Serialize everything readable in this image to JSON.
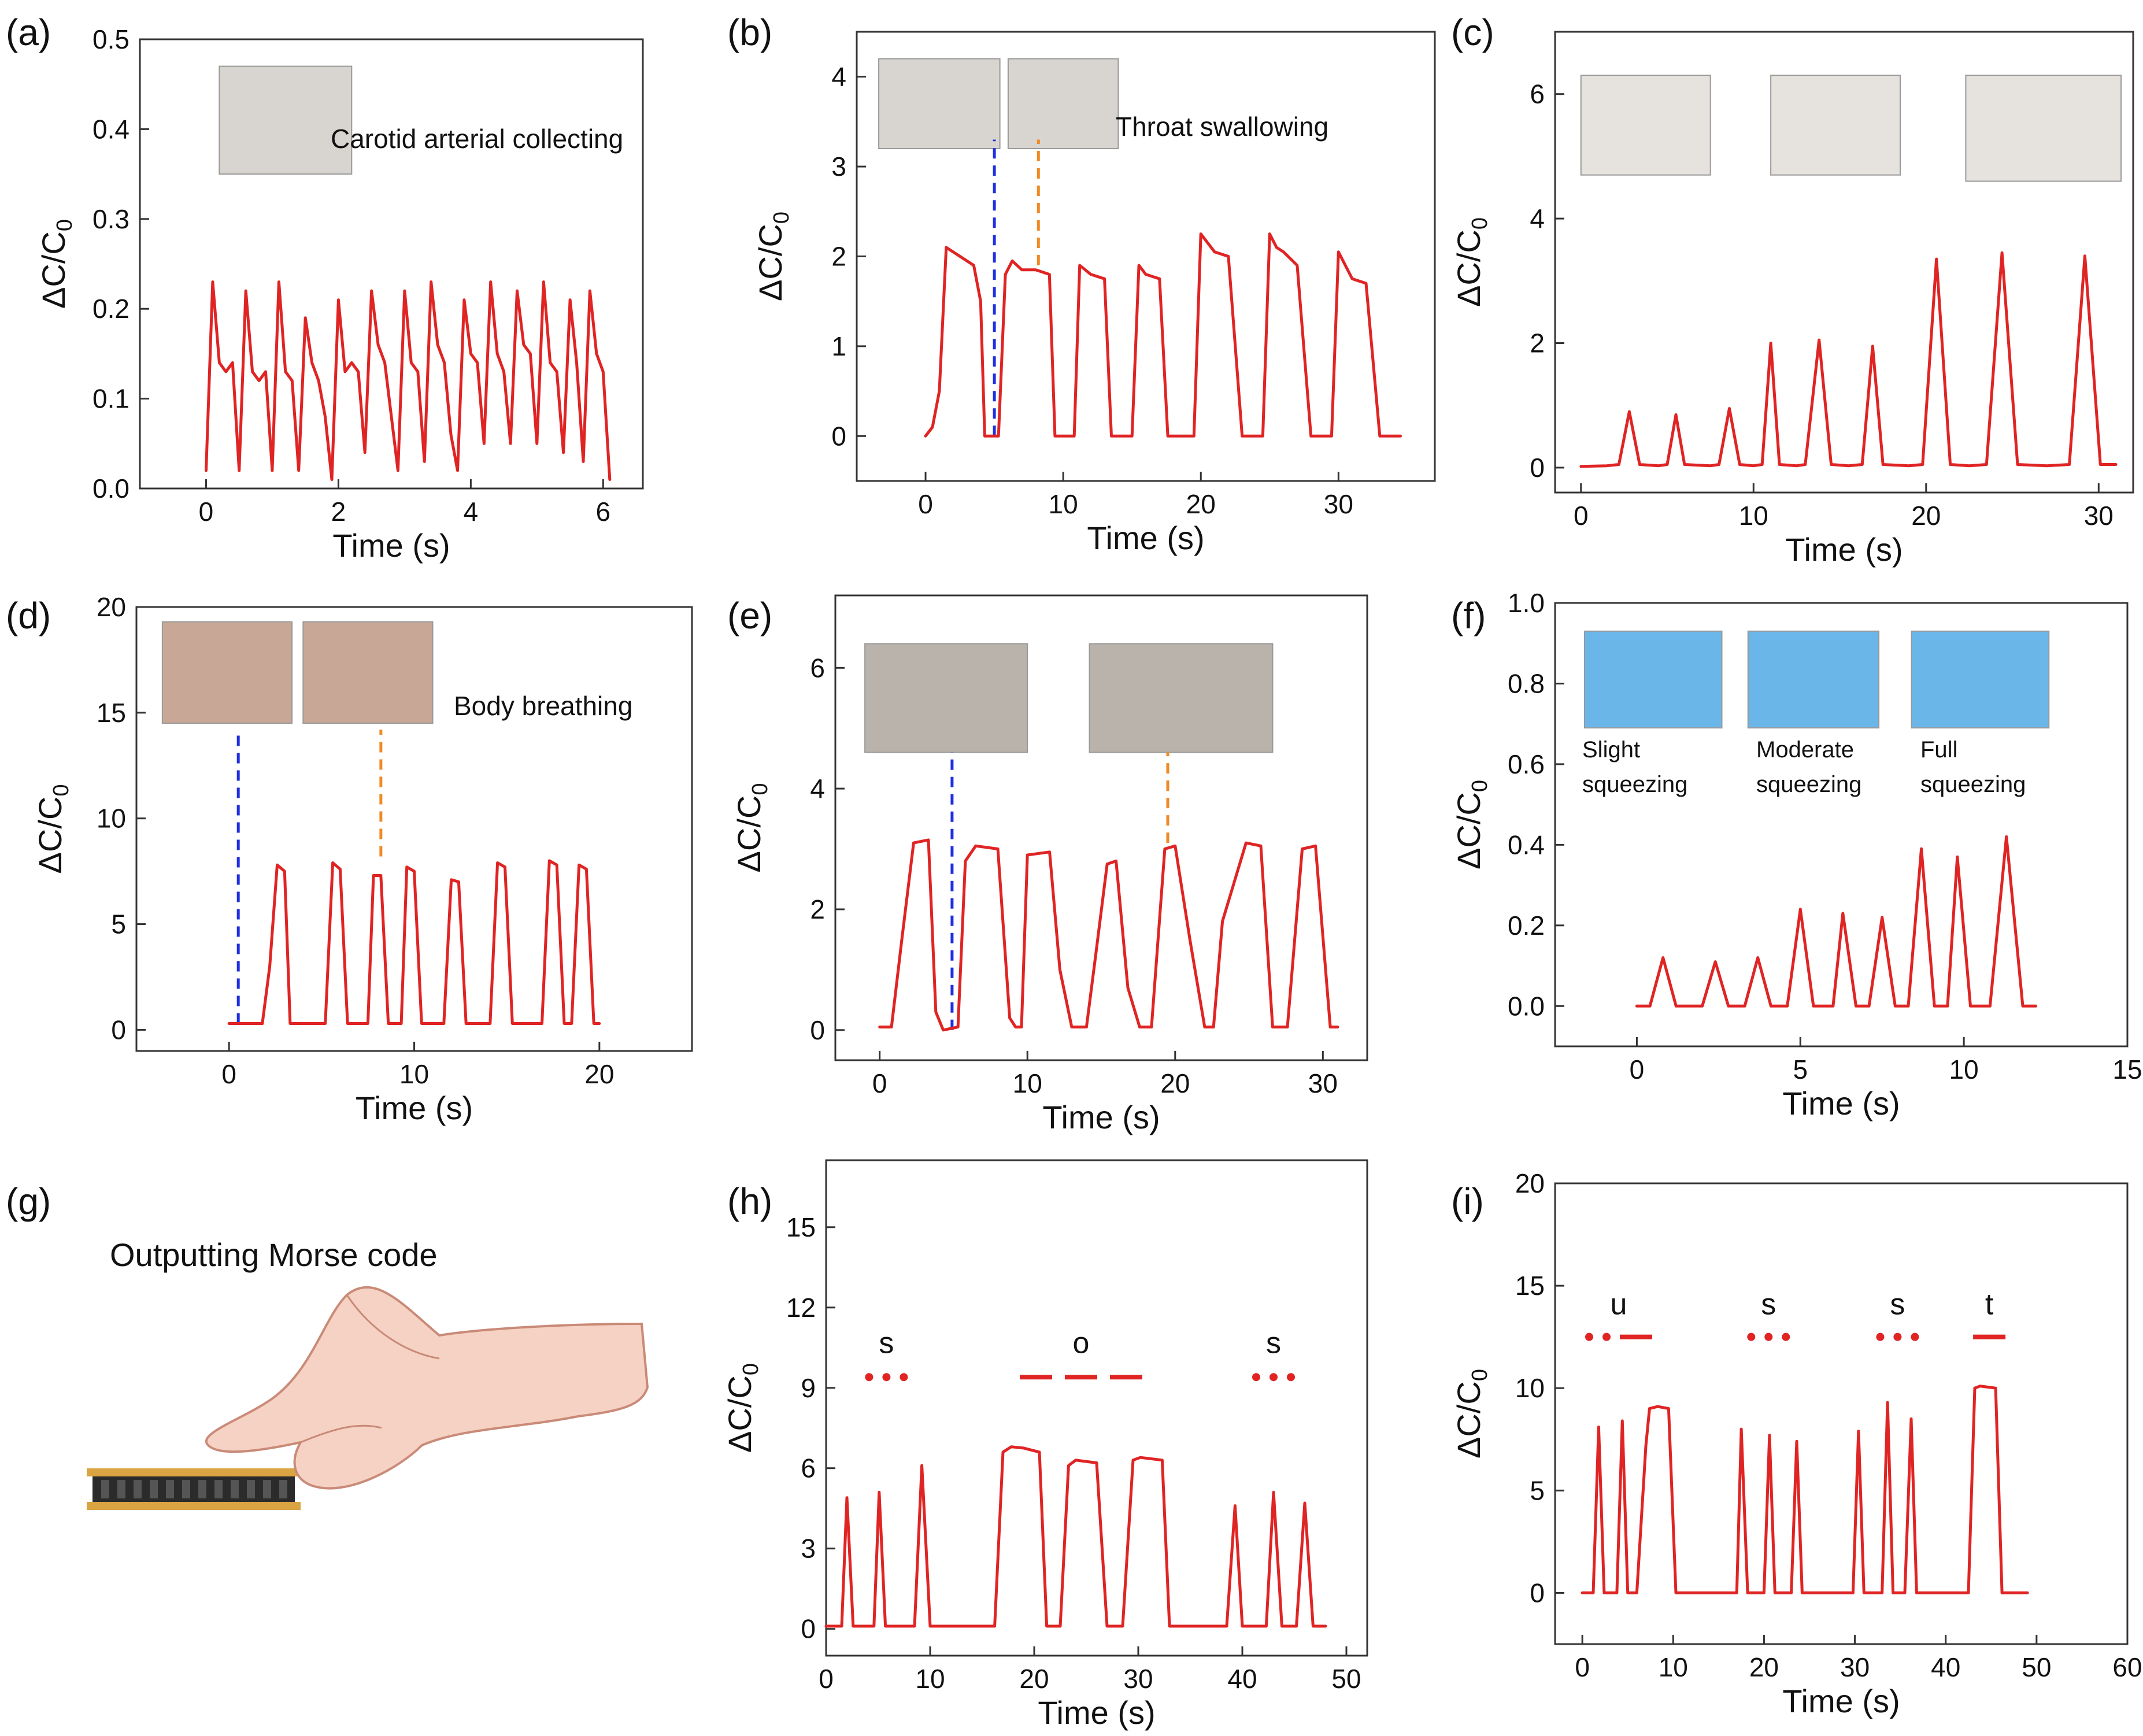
{
  "colors": {
    "series": "#e02424",
    "marker_blue": "#1f2fe0",
    "marker_orange": "#f08a24",
    "axis": "#333333",
    "skin": "#f6d2c4",
    "skin_line": "#c98a78",
    "sensor_gold": "#d9a441",
    "sensor_dark": "#2b2b2b"
  },
  "figure_g": {
    "label": "(g)",
    "caption": "Outputting Morse code",
    "illustration": "hand-pressing-sensor"
  },
  "chart_data": [
    {
      "id": "a",
      "label": "(a)",
      "type": "line",
      "xlabel": "Time (s)",
      "ylabel": "ΔC/C0",
      "xlim": [
        -1,
        6.6
      ],
      "ylim": [
        0,
        0.5
      ],
      "xticks": [
        0,
        2,
        4,
        6
      ],
      "yticks": [
        0.0,
        0.1,
        0.2,
        0.3,
        0.4,
        0.5
      ],
      "ytick_labels": [
        "0.0",
        "0.1",
        "0.2",
        "0.3",
        "0.4",
        "0.5"
      ],
      "inset_texts": [
        "Carotid arterial collecting"
      ],
      "insets": [
        {
          "x": 0.2,
          "y": 0.47,
          "w": 2.0,
          "h": 0.12
        }
      ],
      "markers": [],
      "morse": [],
      "series": {
        "x": [
          0,
          0.1,
          0.2,
          0.3,
          0.4,
          0.5,
          0.6,
          0.7,
          0.8,
          0.9,
          1.0,
          1.1,
          1.2,
          1.3,
          1.4,
          1.5,
          1.6,
          1.7,
          1.8,
          1.9,
          2.0,
          2.1,
          2.2,
          2.3,
          2.4,
          2.5,
          2.6,
          2.7,
          2.8,
          2.9,
          3.0,
          3.1,
          3.2,
          3.3,
          3.4,
          3.5,
          3.6,
          3.7,
          3.8,
          3.9,
          4.0,
          4.1,
          4.2,
          4.3,
          4.4,
          4.5,
          4.6,
          4.7,
          4.8,
          4.9,
          5.0,
          5.1,
          5.2,
          5.3,
          5.4,
          5.5,
          5.6,
          5.7,
          5.8,
          5.9,
          6.0,
          6.1
        ],
        "y": [
          0.02,
          0.23,
          0.14,
          0.13,
          0.14,
          0.02,
          0.22,
          0.13,
          0.12,
          0.13,
          0.02,
          0.23,
          0.13,
          0.12,
          0.02,
          0.19,
          0.14,
          0.12,
          0.08,
          0.01,
          0.21,
          0.13,
          0.14,
          0.13,
          0.04,
          0.22,
          0.16,
          0.14,
          0.08,
          0.02,
          0.22,
          0.14,
          0.13,
          0.03,
          0.23,
          0.16,
          0.14,
          0.06,
          0.02,
          0.21,
          0.15,
          0.14,
          0.05,
          0.23,
          0.15,
          0.13,
          0.05,
          0.22,
          0.16,
          0.15,
          0.05,
          0.23,
          0.14,
          0.13,
          0.04,
          0.21,
          0.14,
          0.03,
          0.22,
          0.15,
          0.13,
          0.01
        ]
      }
    },
    {
      "id": "b",
      "label": "(b)",
      "type": "line",
      "xlabel": "Time (s)",
      "ylabel": "ΔC/C0",
      "xlim": [
        -5,
        37
      ],
      "ylim": [
        -0.5,
        4.5
      ],
      "xticks": [
        0,
        10,
        20,
        30
      ],
      "yticks": [
        0,
        1,
        2,
        3,
        4
      ],
      "ytick_labels": [
        "0",
        "1",
        "2",
        "3",
        "4"
      ],
      "inset_texts": [
        "Throat swallowing"
      ],
      "insets": [
        {
          "x": -3.4,
          "y": 4.2,
          "w": 8.8,
          "h": 1.0
        },
        {
          "x": 6.0,
          "y": 4.2,
          "w": 8.0,
          "h": 1.0
        }
      ],
      "markers": [
        {
          "x": 5.0,
          "y_from": 0.0,
          "y_to": 3.3,
          "color": "blue"
        },
        {
          "x": 8.2,
          "y_from": 1.9,
          "y_to": 3.3,
          "color": "orange"
        }
      ],
      "morse": [],
      "series": {
        "x": [
          0,
          0.5,
          1.0,
          1.5,
          2.5,
          3.5,
          4.0,
          4.3,
          4.8,
          5.3,
          5.8,
          6.3,
          7.0,
          8.0,
          9.0,
          9.4,
          9.8,
          10.3,
          10.8,
          11.2,
          12.0,
          13.0,
          13.5,
          14.0,
          14.5,
          15.0,
          15.5,
          16.0,
          17.0,
          17.6,
          18.0,
          19.0,
          19.5,
          20.0,
          20.5,
          21.0,
          22.0,
          23.0,
          23.5,
          24.0,
          24.5,
          25.0,
          25.5,
          26.0,
          27.0,
          28.0,
          28.3,
          29.0,
          29.5,
          30.0,
          30.5,
          31.0,
          32.0,
          33.0,
          33.5,
          34.0,
          34.5
        ],
        "y": [
          0.0,
          0.1,
          0.5,
          2.1,
          2.0,
          1.9,
          1.5,
          0.0,
          0.0,
          0.0,
          1.8,
          1.95,
          1.85,
          1.85,
          1.8,
          0.0,
          0.0,
          0.0,
          0.0,
          1.9,
          1.8,
          1.75,
          0.0,
          0.0,
          0.0,
          0.0,
          1.9,
          1.8,
          1.75,
          0.0,
          0.0,
          0.0,
          0.0,
          2.25,
          2.15,
          2.05,
          2.0,
          0.0,
          0.0,
          0.0,
          0.0,
          2.25,
          2.1,
          2.05,
          1.9,
          0.0,
          0.0,
          0.0,
          0.0,
          2.05,
          1.9,
          1.75,
          1.7,
          0.0,
          0.0,
          0.0,
          0.0
        ]
      }
    },
    {
      "id": "c",
      "label": "(c)",
      "type": "line",
      "xlabel": "Time (s)",
      "ylabel": "ΔC/C0",
      "xlim": [
        -1.5,
        32
      ],
      "ylim": [
        -0.4,
        7.0
      ],
      "xticks": [
        0,
        10,
        20,
        30
      ],
      "yticks": [
        0,
        2,
        4,
        6
      ],
      "ytick_labels": [
        "0",
        "2",
        "4",
        "6"
      ],
      "inset_texts": [],
      "insets": [
        {
          "x": 0.0,
          "y": 6.3,
          "w": 7.5,
          "h": 1.6
        },
        {
          "x": 11.0,
          "y": 6.3,
          "w": 7.5,
          "h": 1.6
        },
        {
          "x": 22.3,
          "y": 6.3,
          "w": 9.0,
          "h": 1.7
        }
      ],
      "markers": [],
      "morse": [],
      "series": {
        "x": [
          0,
          1.5,
          2.2,
          2.8,
          3.4,
          4.5,
          5.0,
          5.5,
          6.0,
          7.5,
          8.0,
          8.6,
          9.2,
          10.0,
          10.5,
          11.0,
          11.5,
          12.5,
          13.0,
          13.8,
          14.5,
          15.5,
          16.3,
          16.9,
          17.5,
          19.0,
          19.8,
          20.6,
          21.4,
          22.5,
          23.5,
          24.4,
          25.3,
          27.0,
          28.3,
          29.2,
          30.1,
          31.0
        ],
        "y": [
          0.02,
          0.03,
          0.05,
          0.9,
          0.05,
          0.03,
          0.05,
          0.85,
          0.05,
          0.03,
          0.05,
          0.95,
          0.05,
          0.03,
          0.05,
          2.0,
          0.05,
          0.03,
          0.05,
          2.05,
          0.05,
          0.03,
          0.05,
          1.95,
          0.05,
          0.03,
          0.05,
          3.35,
          0.05,
          0.03,
          0.05,
          3.45,
          0.05,
          0.03,
          0.05,
          3.4,
          0.05,
          0.05
        ]
      }
    },
    {
      "id": "d",
      "label": "(d)",
      "type": "line",
      "xlabel": "Time (s)",
      "ylabel": "ΔC/C0",
      "xlim": [
        -5,
        25
      ],
      "ylim": [
        -1,
        20
      ],
      "xticks": [
        0,
        10,
        20
      ],
      "yticks": [
        0,
        5,
        10,
        15,
        20
      ],
      "ytick_labels": [
        "0",
        "5",
        "10",
        "15",
        "20"
      ],
      "inset_texts": [
        "Body breathing"
      ],
      "insets": [
        {
          "x": -3.6,
          "y": 19.3,
          "w": 7.0,
          "h": 4.8
        },
        {
          "x": 4.0,
          "y": 19.3,
          "w": 7.0,
          "h": 4.8
        }
      ],
      "markers": [
        {
          "x": 0.5,
          "y_from": 0.3,
          "y_to": 14.2,
          "color": "blue"
        },
        {
          "x": 8.2,
          "y_from": 8.2,
          "y_to": 14.2,
          "color": "orange"
        }
      ],
      "morse": [],
      "series": {
        "x": [
          0,
          1.8,
          2.2,
          2.6,
          3.0,
          3.3,
          5.2,
          5.6,
          6.0,
          6.4,
          7.5,
          7.8,
          8.2,
          8.6,
          9.3,
          9.6,
          10.0,
          10.4,
          11.6,
          12.0,
          12.4,
          12.8,
          14.1,
          14.5,
          14.9,
          15.3,
          16.9,
          17.3,
          17.7,
          18.1,
          18.5,
          18.9,
          19.3,
          19.7,
          20.0
        ],
        "y": [
          0.3,
          0.3,
          3.0,
          7.8,
          7.5,
          0.3,
          0.3,
          7.9,
          7.6,
          0.3,
          0.3,
          7.3,
          7.3,
          0.3,
          0.3,
          7.7,
          7.5,
          0.3,
          0.3,
          7.1,
          7.0,
          0.3,
          0.3,
          7.9,
          7.7,
          0.3,
          0.3,
          8.0,
          7.8,
          0.3,
          0.3,
          7.8,
          7.6,
          0.3,
          0.3
        ]
      }
    },
    {
      "id": "e",
      "label": "(e)",
      "type": "line",
      "xlabel": "Time (s)",
      "ylabel": "ΔC/C0",
      "xlim": [
        -3,
        33
      ],
      "ylim": [
        -0.5,
        7.2
      ],
      "xticks": [
        0,
        10,
        20,
        30
      ],
      "yticks": [
        0,
        2,
        4,
        6
      ],
      "ytick_labels": [
        "0",
        "2",
        "4",
        "6"
      ],
      "inset_texts": [],
      "insets": [
        {
          "x": -1.0,
          "y": 6.4,
          "w": 11.0,
          "h": 1.8
        },
        {
          "x": 14.2,
          "y": 6.4,
          "w": 12.4,
          "h": 1.8
        }
      ],
      "markers": [
        {
          "x": 4.9,
          "y_from": 0.0,
          "y_to": 4.6,
          "color": "blue"
        },
        {
          "x": 19.5,
          "y_from": 3.1,
          "y_to": 4.6,
          "color": "orange"
        }
      ],
      "morse": [],
      "series": {
        "x": [
          0,
          0.8,
          1.5,
          2.3,
          3.3,
          3.8,
          4.3,
          5.3,
          5.8,
          6.5,
          8.0,
          8.8,
          9.2,
          9.6,
          10.0,
          11.5,
          12.2,
          13.0,
          14.0,
          14.6,
          15.4,
          16.0,
          16.8,
          17.6,
          18.4,
          19.3,
          20.0,
          21.0,
          22.0,
          22.6,
          23.2,
          24.8,
          25.8,
          26.6,
          27.6,
          28.6,
          29.5,
          30.5,
          31.0
        ],
        "y": [
          0.05,
          0.05,
          1.5,
          3.1,
          3.15,
          0.3,
          0.0,
          0.05,
          2.8,
          3.05,
          3.0,
          0.2,
          0.05,
          0.05,
          2.9,
          2.95,
          1.0,
          0.05,
          0.05,
          1.2,
          2.75,
          2.8,
          0.7,
          0.05,
          0.05,
          3.0,
          3.05,
          1.5,
          0.05,
          0.05,
          1.8,
          3.1,
          3.05,
          0.05,
          0.05,
          3.0,
          3.05,
          0.05,
          0.05
        ]
      }
    },
    {
      "id": "f",
      "label": "(f)",
      "type": "line",
      "xlabel": "Time (s)",
      "ylabel": "ΔC/C0",
      "xlim": [
        -2.5,
        15
      ],
      "ylim": [
        -0.1,
        1.0
      ],
      "xticks": [
        0,
        5,
        10,
        15
      ],
      "yticks": [
        0.0,
        0.2,
        0.4,
        0.6,
        0.8,
        1.0
      ],
      "ytick_labels": [
        "0.0",
        "0.2",
        "0.4",
        "0.6",
        "0.8",
        "1.0"
      ],
      "inset_texts": [
        "Slight",
        "squeezing",
        "Moderate",
        "squeezing",
        "Full",
        "squeezing"
      ],
      "insets": [
        {
          "x": -1.6,
          "y": 0.93,
          "w": 4.2,
          "h": 0.24
        },
        {
          "x": 3.4,
          "y": 0.93,
          "w": 4.0,
          "h": 0.24
        },
        {
          "x": 8.4,
          "y": 0.93,
          "w": 4.2,
          "h": 0.24
        }
      ],
      "markers": [],
      "morse": [],
      "series": {
        "x": [
          0,
          0.4,
          0.8,
          1.2,
          2.0,
          2.4,
          2.8,
          3.3,
          3.7,
          4.1,
          4.6,
          5.0,
          5.4,
          6.0,
          6.3,
          6.7,
          7.1,
          7.5,
          7.9,
          8.3,
          8.7,
          9.1,
          9.5,
          9.8,
          10.2,
          10.8,
          11.3,
          11.8,
          12.2
        ],
        "y": [
          0.0,
          0.0,
          0.12,
          0.0,
          0.0,
          0.11,
          0.0,
          0.0,
          0.12,
          0.0,
          0.0,
          0.24,
          0.0,
          0.0,
          0.23,
          0.0,
          0.0,
          0.22,
          0.0,
          0.0,
          0.39,
          0.0,
          0.0,
          0.37,
          0.0,
          0.0,
          0.42,
          0.0,
          0.0
        ]
      }
    },
    {
      "id": "h",
      "label": "(h)",
      "type": "line",
      "xlabel": "Time (s)",
      "ylabel": "ΔC/C0",
      "xlim": [
        0,
        52
      ],
      "ylim": [
        -1,
        17.5
      ],
      "xticks": [
        0,
        10,
        20,
        30,
        40,
        50
      ],
      "yticks": [
        0,
        3,
        6,
        9,
        12,
        15
      ],
      "ytick_labels": [
        "0",
        "3",
        "6",
        "9",
        "12",
        "15"
      ],
      "inset_texts": [
        "s",
        "o",
        "s"
      ],
      "insets": [],
      "markers": [],
      "morse": [
        {
          "letter": "s",
          "x": 5.8,
          "y_letter": 10.3,
          "y_code": 9.4,
          "code": "dot dot dot"
        },
        {
          "letter": "o",
          "x": 24.5,
          "y_letter": 10.3,
          "y_code": 9.4,
          "code": "dash dash dash"
        },
        {
          "letter": "s",
          "x": 43.0,
          "y_letter": 10.3,
          "y_code": 9.4,
          "code": "dot dot dot"
        }
      ],
      "series": {
        "x": [
          0,
          1.5,
          2.0,
          2.6,
          4.6,
          5.1,
          5.7,
          8.5,
          9.2,
          10.0,
          14.0,
          16.2,
          17.0,
          17.8,
          19.0,
          20.5,
          21.2,
          22.5,
          23.3,
          24.0,
          26.0,
          27.0,
          27.5,
          28.5,
          29.5,
          30.2,
          32.3,
          33.0,
          38.5,
          39.3,
          40.0,
          42.3,
          43.0,
          43.8,
          45.2,
          46.0,
          46.8,
          48.0
        ],
        "y": [
          0.1,
          0.1,
          4.9,
          0.1,
          0.1,
          5.1,
          0.1,
          0.1,
          6.1,
          0.1,
          0.1,
          0.1,
          6.6,
          6.8,
          6.75,
          6.6,
          0.1,
          0.1,
          6.1,
          6.3,
          6.2,
          0.1,
          0.1,
          0.1,
          6.3,
          6.4,
          6.3,
          0.1,
          0.1,
          4.6,
          0.1,
          0.1,
          5.1,
          0.1,
          0.1,
          4.7,
          0.1,
          0.1
        ]
      }
    },
    {
      "id": "i",
      "label": "(i)",
      "type": "line",
      "xlabel": "Time (s)",
      "ylabel": "ΔC/C0",
      "xlim": [
        -3,
        60
      ],
      "ylim": [
        -2.5,
        20
      ],
      "xticks": [
        0,
        10,
        20,
        30,
        40,
        50,
        60
      ],
      "yticks": [
        0,
        5,
        10,
        15,
        20
      ],
      "ytick_labels": [
        "0",
        "5",
        "10",
        "15",
        "20"
      ],
      "inset_texts": [
        "u",
        "s",
        "s",
        "t"
      ],
      "insets": [],
      "markers": [],
      "morse": [
        {
          "letter": "u",
          "x": 4.0,
          "y_letter": 13.6,
          "y_code": 12.5,
          "code": "dot dot dash"
        },
        {
          "letter": "s",
          "x": 20.5,
          "y_letter": 13.6,
          "y_code": 12.5,
          "code": "dot dot dot"
        },
        {
          "letter": "s",
          "x": 34.7,
          "y_letter": 13.6,
          "y_code": 12.5,
          "code": "dot dot dot"
        },
        {
          "letter": "t",
          "x": 44.8,
          "y_letter": 13.6,
          "y_code": 12.5,
          "code": "dash"
        }
      ],
      "series": {
        "x": [
          0,
          1.2,
          1.8,
          2.4,
          3.8,
          4.4,
          5.0,
          6.0,
          7.0,
          7.4,
          8.3,
          9.5,
          10.3,
          17.0,
          17.5,
          18.2,
          20.0,
          20.6,
          21.2,
          23.0,
          23.6,
          24.2,
          29.8,
          30.4,
          31.0,
          33.0,
          33.6,
          34.2,
          35.5,
          36.2,
          36.8,
          42.5,
          43.2,
          43.8,
          45.5,
          46.2,
          47.0,
          49.0
        ],
        "y": [
          0.0,
          0.0,
          8.1,
          0.0,
          0.0,
          8.4,
          0.0,
          0.0,
          7.2,
          9.0,
          9.1,
          9.0,
          0.0,
          0.0,
          8.0,
          0.0,
          0.0,
          7.7,
          0.0,
          0.0,
          7.4,
          0.0,
          0.0,
          7.9,
          0.0,
          0.0,
          9.3,
          0.0,
          0.0,
          8.5,
          0.0,
          0.0,
          10.0,
          10.1,
          10.0,
          0.0,
          0.0,
          0.0
        ]
      }
    }
  ]
}
